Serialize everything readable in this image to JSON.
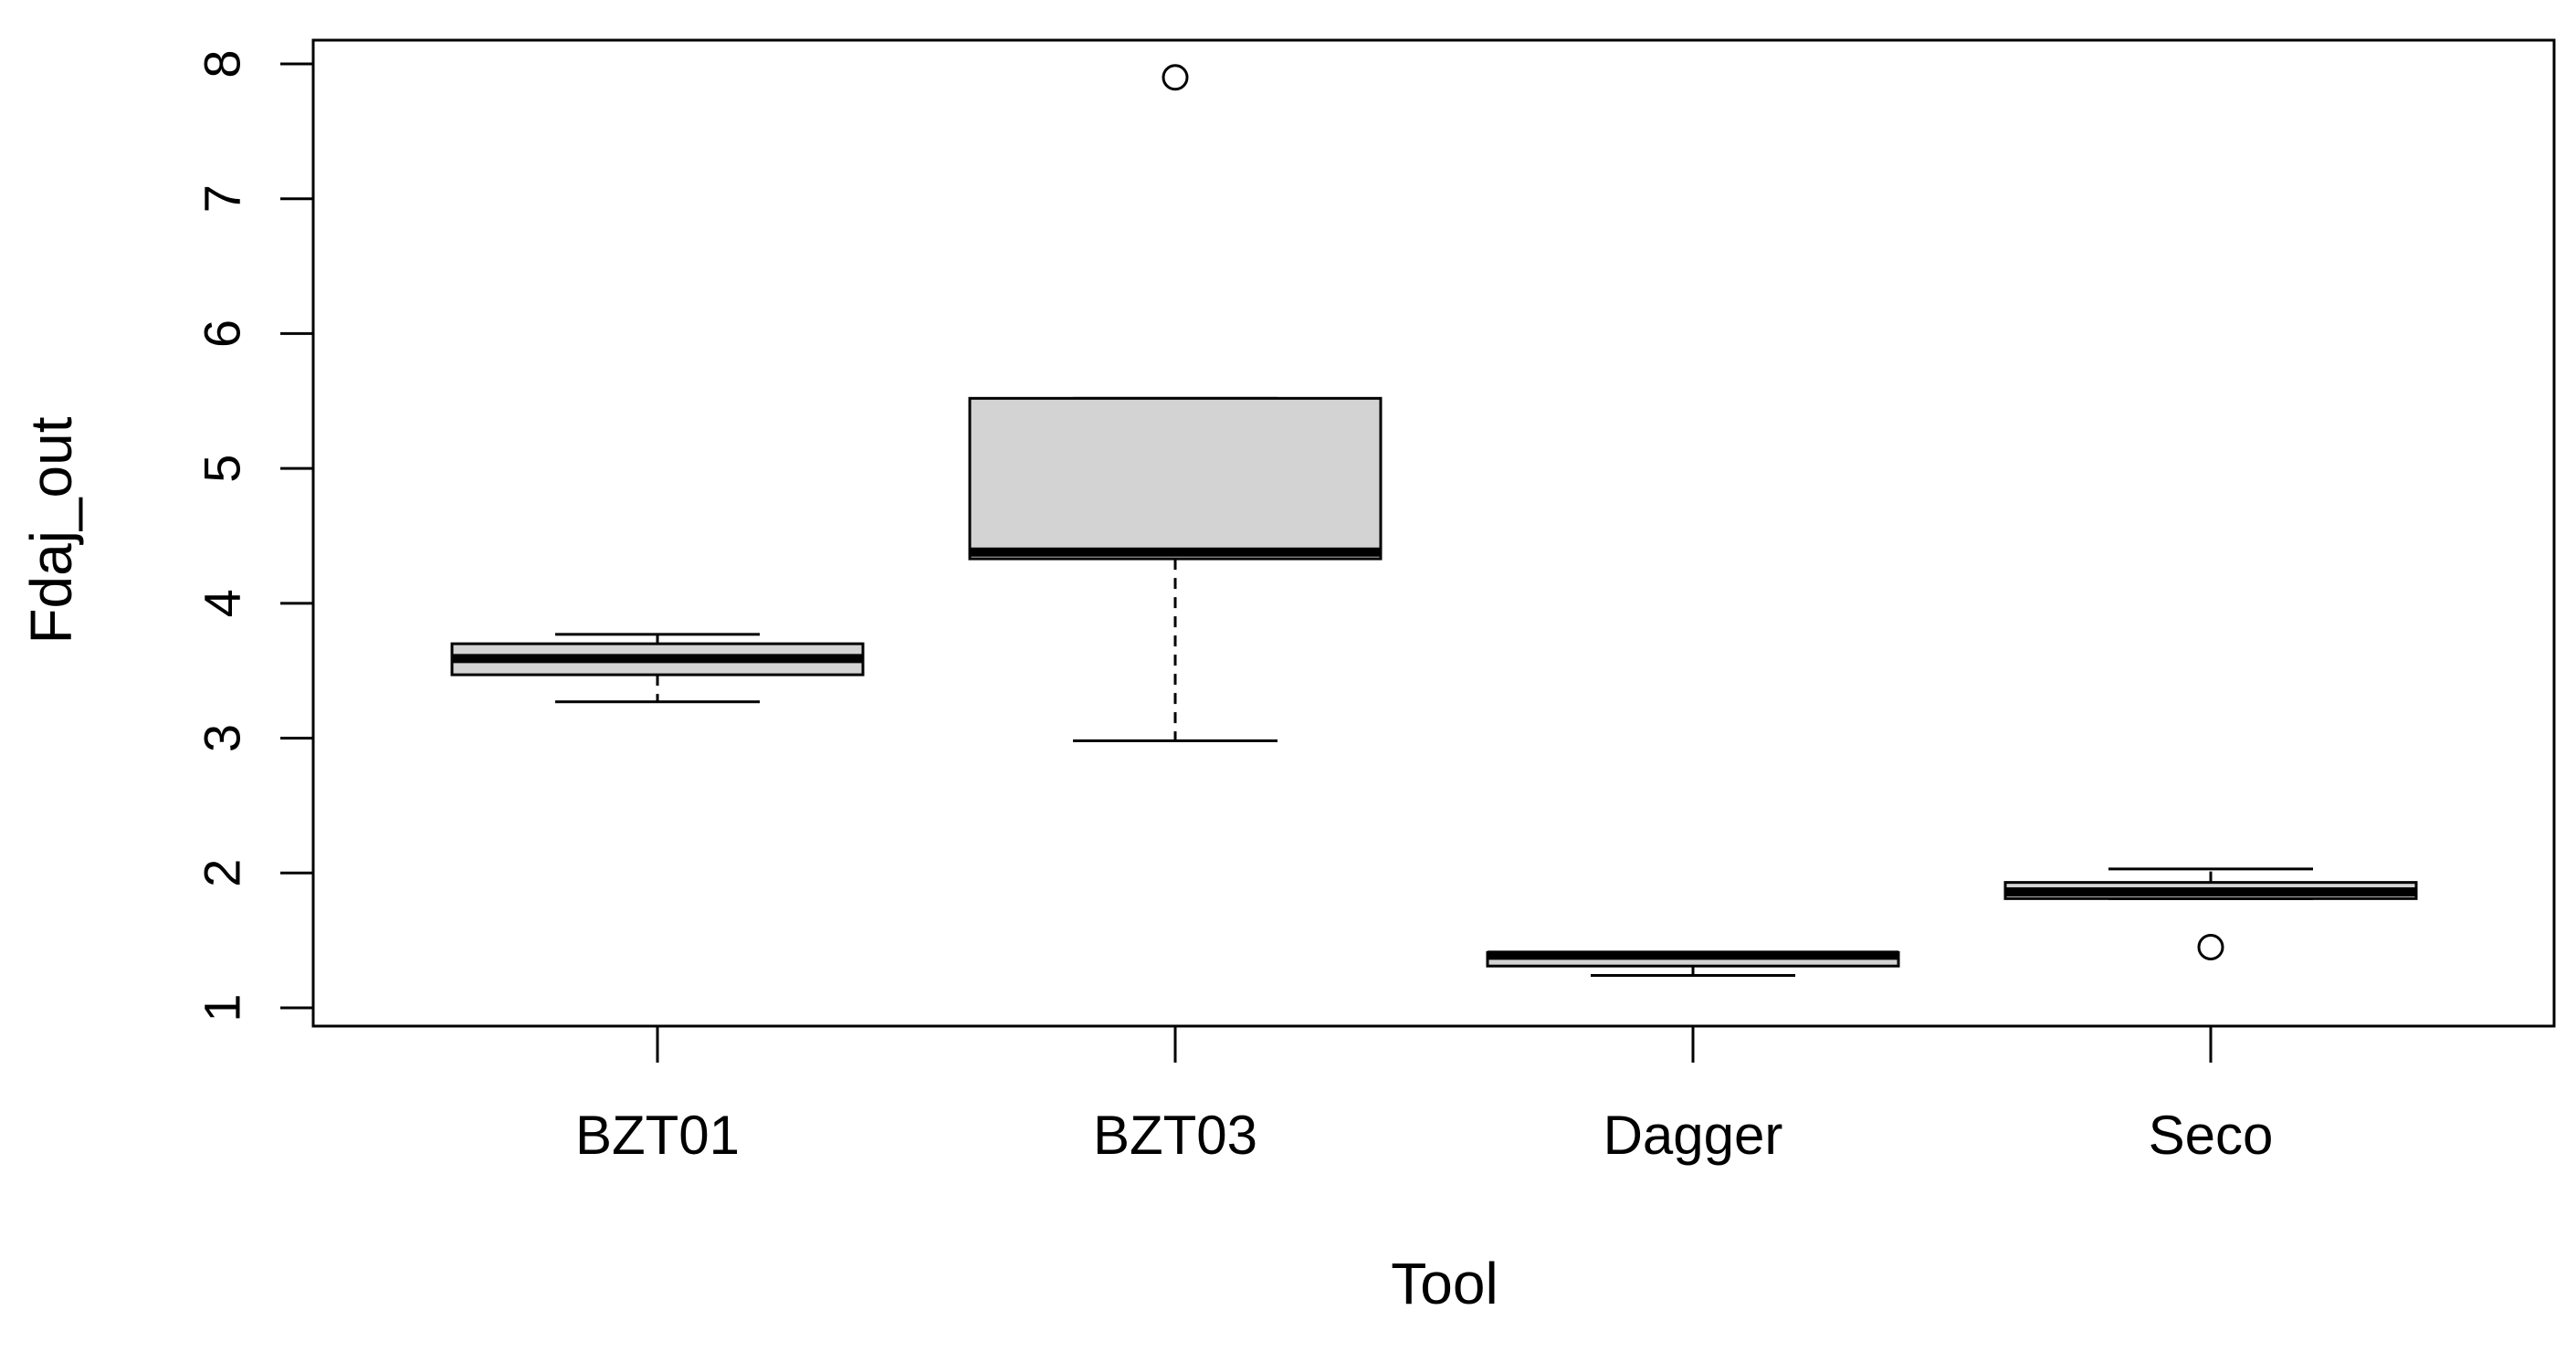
{
  "chart_data": {
    "type": "boxplot",
    "title": "",
    "xlabel": "Tool",
    "ylabel": "Fdaj_out",
    "ylim": [
      1,
      8
    ],
    "yticks": [
      1,
      2,
      3,
      4,
      5,
      6,
      7,
      8
    ],
    "ytick_labels": [
      "1",
      "2",
      "3",
      "4",
      "5",
      "6",
      "7",
      "8"
    ],
    "grid": false,
    "legend": "none",
    "categories": [
      "BZT01",
      "BZT03",
      "Dagger",
      "Seco"
    ],
    "boxes": [
      {
        "category": "BZT01",
        "whisker_low": 3.27,
        "q1": 3.47,
        "median": 3.59,
        "q3": 3.7,
        "whisker_high": 3.77,
        "outliers": []
      },
      {
        "category": "BZT03",
        "whisker_low": 2.98,
        "q1": 4.33,
        "median": 4.38,
        "q3": 5.52,
        "whisker_high": 5.52,
        "outliers": [
          7.9
        ]
      },
      {
        "category": "Dagger",
        "whisker_low": 1.24,
        "q1": 1.31,
        "median": 1.39,
        "q3": 1.41,
        "whisker_high": 1.41,
        "outliers": []
      },
      {
        "category": "Seco",
        "whisker_low": 1.81,
        "q1": 1.81,
        "median": 1.86,
        "q3": 1.93,
        "whisker_high": 2.03,
        "outliers": [
          1.45
        ]
      }
    ],
    "colors": {
      "box_fill": "#d3d3d3",
      "stroke": "#000000",
      "background": "#ffffff"
    }
  }
}
